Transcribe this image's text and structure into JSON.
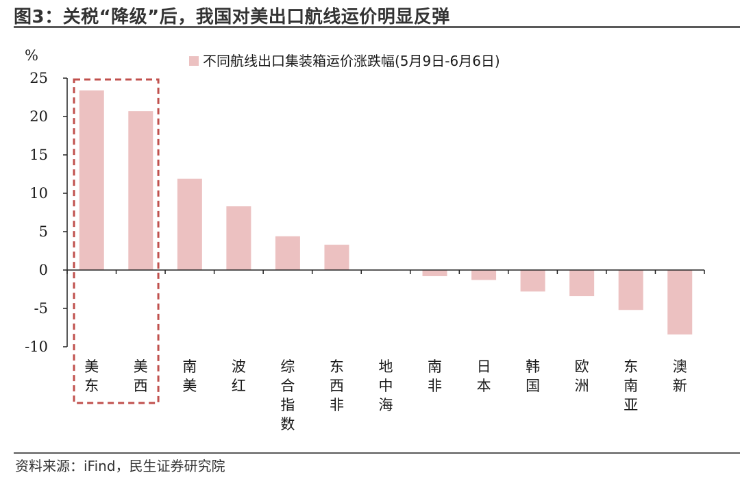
{
  "header": {
    "title": "图3：关税“降级”后，我国对美出口航线运价明显反弹"
  },
  "footer": {
    "source": "资料来源：iFind，民生证券研究院"
  },
  "colors": {
    "bar": "#ecc1c1",
    "highlight_box": "#c0504d",
    "axis": "#222222"
  },
  "chart_data": {
    "type": "bar",
    "title": "",
    "ylabel": "%",
    "xlabel": "",
    "ylim": [
      -10,
      25
    ],
    "yticks": [
      25,
      20,
      15,
      10,
      5,
      0,
      -5,
      -10
    ],
    "grid": false,
    "legend_position": "top",
    "series": [
      {
        "name": "不同航线出口集装箱运价涨跌幅(5月9日-6月6日)",
        "values": [
          23.4,
          20.7,
          11.9,
          8.3,
          4.4,
          3.3,
          0.0,
          -0.8,
          -1.3,
          -2.8,
          -3.4,
          -5.2,
          -8.4
        ]
      }
    ],
    "categories": [
      "美东",
      "美西",
      "南美",
      "波红",
      "综合指数",
      "东西非",
      "地中海",
      "南非",
      "日本",
      "韩国",
      "欧洲",
      "东南亚",
      "澳新"
    ],
    "highlighted_categories": [
      "美东",
      "美西"
    ]
  }
}
